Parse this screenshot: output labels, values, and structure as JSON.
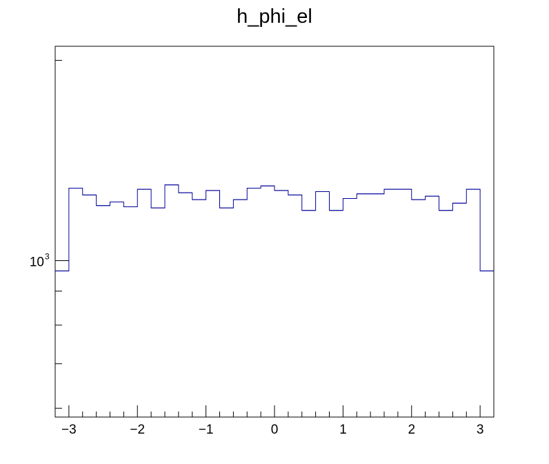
{
  "chart_data": {
    "type": "histogram",
    "title": "h_phi_el",
    "xlabel": "",
    "ylabel": "",
    "xlim": [
      -3.2,
      3.2
    ],
    "ylim": [
      582,
      2100
    ],
    "log_y": true,
    "grid": false,
    "legend": "none",
    "line_color": "#000099",
    "x_ticks": [
      "−3",
      "−2",
      "−1",
      "0",
      "1",
      "2",
      "3"
    ],
    "y_tick_base": "10",
    "y_tick_exp": "3",
    "bin_edges": [
      -3.2,
      -3.0,
      -2.8,
      -2.6,
      -2.4,
      -2.2,
      -2.0,
      -1.8,
      -1.6,
      -1.4,
      -1.2,
      -1.0,
      -0.8,
      -0.6,
      -0.4,
      -0.2,
      0.0,
      0.2,
      0.4,
      0.6,
      0.8,
      1.0,
      1.2,
      1.4,
      1.6,
      1.8,
      2.0,
      2.2,
      2.4,
      2.6,
      2.8,
      3.0,
      3.2
    ],
    "values": [
      965,
      1285,
      1255,
      1210,
      1225,
      1205,
      1280,
      1200,
      1300,
      1265,
      1235,
      1275,
      1200,
      1235,
      1285,
      1295,
      1275,
      1255,
      1190,
      1270,
      1190,
      1240,
      1260,
      1260,
      1280,
      1280,
      1235,
      1250,
      1190,
      1220,
      1280,
      965
    ]
  }
}
